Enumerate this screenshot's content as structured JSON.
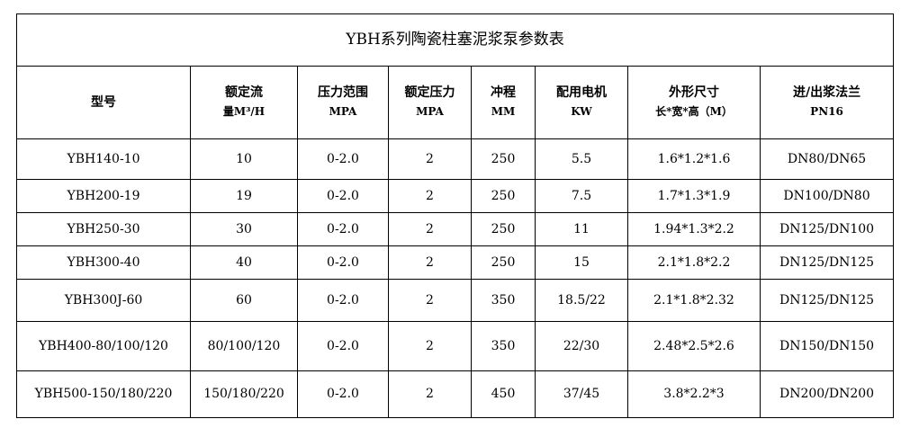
{
  "title": "YBH系列陶瓷柱塞泥浆泵参数表",
  "headers": [
    {
      "line1": "型号",
      "line2": ""
    },
    {
      "line1": "额定流",
      "line2": "量M³/H"
    },
    {
      "line1": "压力范围",
      "line2": "MPA"
    },
    {
      "line1": "额定压力",
      "line2": "MPA"
    },
    {
      "line1": "冲程",
      "line2": "MM"
    },
    {
      "line1": "配用电机",
      "line2": "KW"
    },
    {
      "line1": "外形尺寸",
      "line2": "长*宽*高（M）"
    },
    {
      "line1": "进/出浆法兰",
      "line2": "PN16"
    }
  ],
  "rows": [
    [
      "YBH140-10",
      "10",
      "0-2.0",
      "2",
      "250",
      "5.5",
      "1.6*1.2*1.6",
      "DN80/DN65"
    ],
    [
      "YBH200-19",
      "19",
      "0-2.0",
      "2",
      "250",
      "7.5",
      "1.7*1.3*1.9",
      "DN100/DN80"
    ],
    [
      "YBH250-30",
      "30",
      "0-2.0",
      "2",
      "250",
      "11",
      "1.94*1.3*2.2",
      "DN125/DN100"
    ],
    [
      "YBH300-40",
      "40",
      "0-2.0",
      "2",
      "250",
      "15",
      "2.1*1.8*2.2",
      "DN125/DN125"
    ],
    [
      "YBH300J-60",
      "60",
      "0-2.0",
      "2",
      "350",
      "18.5/22",
      "2.1*1.8*2.32",
      "DN125/DN125"
    ],
    [
      "YBH400-80/100/120",
      "80/100/120",
      "0-2.0",
      "2",
      "350",
      "22/30",
      "2.48*2.5*2.6",
      "DN150/DN150"
    ],
    [
      "YBH500-150/180/220",
      "150/180/220",
      "0-2.0",
      "2",
      "450",
      "37/45",
      "3.8*2.2*3",
      "DN200/DN200"
    ]
  ]
}
